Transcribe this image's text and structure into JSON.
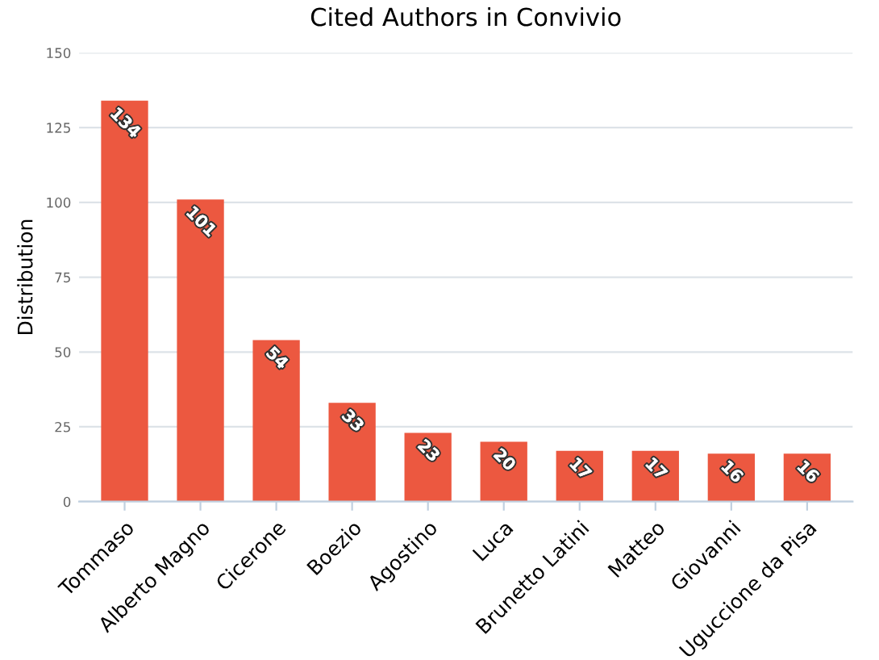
{
  "chart_data": {
    "type": "bar",
    "title": "Cited Authors in Convivio",
    "ylabel": "Distribution",
    "categories": [
      "Tommaso",
      "Alberto Magno",
      "Cicerone",
      "Boezio",
      "Agostino",
      "Luca",
      "Brunetto Latini",
      "Matteo",
      "Giovanni",
      "Uguccione da Pisa"
    ],
    "values": [
      134,
      101,
      54,
      33,
      23,
      20,
      17,
      17,
      16,
      16
    ],
    "color": "#ec5840",
    "ylim": [
      0,
      150
    ],
    "yticks": [
      0,
      25,
      50,
      75,
      100,
      125,
      150
    ],
    "grid": "y",
    "data_labels": true
  }
}
